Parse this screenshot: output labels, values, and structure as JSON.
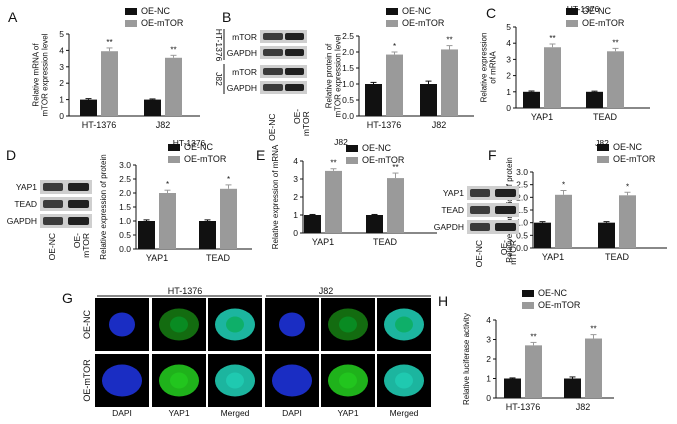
{
  "colors": {
    "oe_nc": "#111111",
    "oe_mtor": "#9a9a9a",
    "dapi": "#1d32d8",
    "yap1": "#22c51e",
    "merged": "#1fc9b0"
  },
  "legend_labels": [
    "OE-NC",
    "OE-mTOR"
  ],
  "panel_letters": [
    "A",
    "B",
    "C",
    "D",
    "E",
    "F",
    "G",
    "H"
  ],
  "blots": {
    "B": {
      "rows": [
        "mTOR",
        "GAPDH",
        "mTOR",
        "GAPDH"
      ],
      "groups": [
        "HT-1376",
        "J82"
      ],
      "lanes": [
        "OE-NC",
        "OE-\nmTOR"
      ]
    },
    "D": {
      "rows": [
        "YAP1",
        "TEAD",
        "GAPDH"
      ],
      "lanes": [
        "OE-NC",
        "OE-\nmTOR"
      ]
    },
    "F": {
      "rows": [
        "YAP1",
        "TEAD",
        "GAPDH"
      ],
      "lanes": [
        "OE-NC",
        "OE-\nmTOR"
      ]
    }
  },
  "microscopy": {
    "groups": [
      "HT-1376",
      "J82"
    ],
    "rows": [
      "OE-NC",
      "OE-mTOR"
    ],
    "columns": [
      "DAPI",
      "YAP1",
      "Merged",
      "DAPI",
      "YAP1",
      "Merged"
    ]
  },
  "chart_data": [
    {
      "id": "A",
      "type": "bar",
      "title": "",
      "ylabel": "Relative mRNA of\nmTOR expression level",
      "categories": [
        "HT-1376",
        "J82"
      ],
      "ylim": [
        0,
        5
      ],
      "yticks": [
        0,
        1,
        2,
        3,
        4,
        5
      ],
      "series": [
        {
          "name": "OE-NC",
          "values": [
            1.0,
            1.0
          ],
          "errors": [
            0.06,
            0.04
          ]
        },
        {
          "name": "OE-mTOR",
          "values": [
            3.95,
            3.55
          ],
          "errors": [
            0.2,
            0.15
          ]
        }
      ],
      "annotations": [
        "**",
        "**"
      ]
    },
    {
      "id": "B",
      "type": "bar",
      "title": "",
      "ylabel": "Relative protein of\nmTOR expression level",
      "categories": [
        "HT-1376",
        "J82"
      ],
      "ylim": [
        0,
        2.5
      ],
      "yticks": [
        0.0,
        0.5,
        1.0,
        1.5,
        2.0,
        2.5
      ],
      "series": [
        {
          "name": "OE-NC",
          "values": [
            1.0,
            1.0
          ],
          "errors": [
            0.05,
            0.09
          ]
        },
        {
          "name": "OE-mTOR",
          "values": [
            1.92,
            2.08
          ],
          "errors": [
            0.08,
            0.12
          ]
        }
      ],
      "annotations": [
        "*",
        "**"
      ]
    },
    {
      "id": "C",
      "type": "bar",
      "title": "HT-1376",
      "ylabel": "Relative expression\nof mRNA",
      "categories": [
        "YAP1",
        "TEAD"
      ],
      "ylim": [
        0,
        5
      ],
      "yticks": [
        0,
        1,
        2,
        3,
        4,
        5
      ],
      "series": [
        {
          "name": "OE-NC",
          "values": [
            1.0,
            1.0
          ],
          "errors": [
            0.05,
            0.04
          ]
        },
        {
          "name": "OE-mTOR",
          "values": [
            3.75,
            3.5
          ],
          "errors": [
            0.2,
            0.18
          ]
        }
      ],
      "annotations": [
        "**",
        "**"
      ]
    },
    {
      "id": "D",
      "type": "bar",
      "title": "HT-1376",
      "ylabel": "Relative expression of protein",
      "categories": [
        "YAP1",
        "TEAD"
      ],
      "ylim": [
        0,
        3
      ],
      "yticks": [
        0.0,
        0.5,
        1.0,
        1.5,
        2.0,
        2.5,
        3.0
      ],
      "series": [
        {
          "name": "OE-NC",
          "values": [
            1.0,
            1.0
          ],
          "errors": [
            0.04,
            0.04
          ]
        },
        {
          "name": "OE-mTOR",
          "values": [
            2.0,
            2.15
          ],
          "errors": [
            0.1,
            0.14
          ]
        }
      ],
      "annotations": [
        "*",
        "*"
      ]
    },
    {
      "id": "E",
      "type": "bar",
      "title": "J82",
      "ylabel": "Relative expression of mRNA",
      "categories": [
        "YAP1",
        "TEAD"
      ],
      "ylim": [
        0,
        4
      ],
      "yticks": [
        0,
        1,
        2,
        3,
        4
      ],
      "series": [
        {
          "name": "OE-NC",
          "values": [
            1.0,
            1.0
          ],
          "errors": [
            0.03,
            0.03
          ]
        },
        {
          "name": "OE-mTOR",
          "values": [
            3.45,
            3.05
          ],
          "errors": [
            0.12,
            0.28
          ]
        }
      ],
      "annotations": [
        "**",
        "**"
      ]
    },
    {
      "id": "F",
      "type": "bar",
      "title": "J82",
      "ylabel": "Relative expression of protein",
      "categories": [
        "YAP1",
        "TEAD"
      ],
      "ylim": [
        0,
        3
      ],
      "yticks": [
        0.0,
        0.5,
        1.0,
        1.5,
        2.0,
        2.5,
        3.0
      ],
      "series": [
        {
          "name": "OE-NC",
          "values": [
            1.0,
            1.0
          ],
          "errors": [
            0.04,
            0.04
          ]
        },
        {
          "name": "OE-mTOR",
          "values": [
            2.1,
            2.08
          ],
          "errors": [
            0.17,
            0.12
          ]
        }
      ],
      "annotations": [
        "*",
        "*"
      ]
    },
    {
      "id": "H",
      "type": "bar",
      "title": "",
      "ylabel": "Relative luciferase activity",
      "categories": [
        "HT-1376",
        "J82"
      ],
      "ylim": [
        0,
        4
      ],
      "yticks": [
        0,
        1,
        2,
        3,
        4
      ],
      "series": [
        {
          "name": "OE-NC",
          "values": [
            1.0,
            1.0
          ],
          "errors": [
            0.03,
            0.08
          ]
        },
        {
          "name": "OE-mTOR",
          "values": [
            2.7,
            3.05
          ],
          "errors": [
            0.15,
            0.2
          ]
        }
      ],
      "annotations": [
        "**",
        "**"
      ]
    }
  ]
}
